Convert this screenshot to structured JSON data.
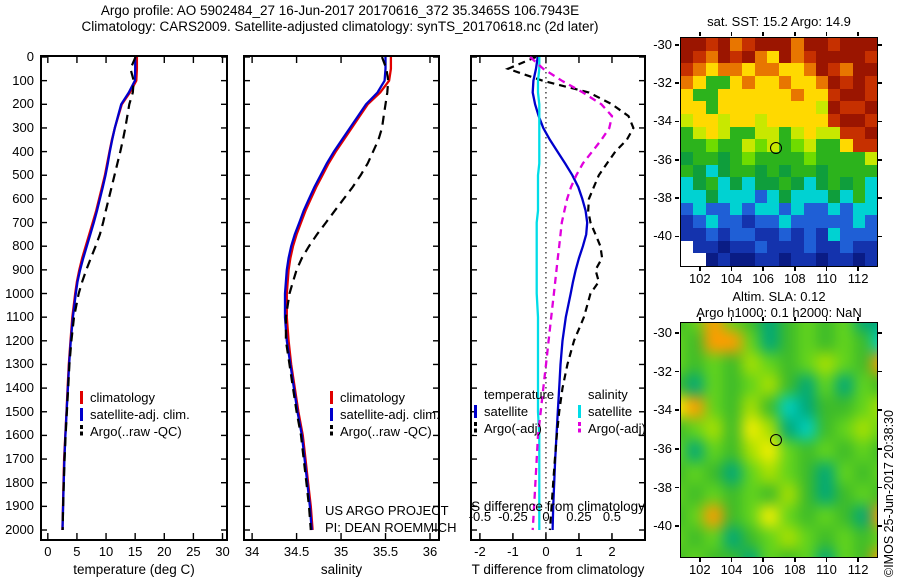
{
  "title": {
    "line1": "Argo profile: AO 5902484_27 16-Jun-2017 20170616_372 35.3465S 106.7943E",
    "line2": "Climatology: CARS2009. Satellite-adjusted climatology: synTS_20170618.nc (2d later)"
  },
  "credit": "©IMOS 25-Jun-2017 20:38:30",
  "notes": {
    "us_argo": [
      "US ARGO PROJECT",
      "PI: DEAN ROEMMICH"
    ]
  },
  "colors": {
    "climatology": "#e00000",
    "satellite_adj": "#0000cc",
    "argo": "#000000",
    "s_satellite": "#00dde8",
    "s_argo": "#e000dd"
  },
  "chart_data": [
    {
      "id": "temp-profile",
      "type": "line",
      "xlabel": "temperature (deg C)",
      "xlim": [
        -1,
        30.6
      ],
      "xticks": [
        0,
        5,
        10,
        15,
        20,
        25,
        30
      ],
      "ylim": [
        0,
        2038
      ],
      "ytick_labels": true,
      "yticks": [
        0,
        100,
        200,
        300,
        400,
        500,
        600,
        700,
        800,
        900,
        1000,
        1100,
        1200,
        1300,
        1400,
        1500,
        1600,
        1700,
        1800,
        1900,
        2000
      ],
      "depths": [
        0,
        50,
        100,
        150,
        200,
        250,
        300,
        350,
        400,
        450,
        500,
        550,
        600,
        650,
        700,
        750,
        800,
        850,
        900,
        950,
        1000,
        1100,
        1200,
        1300,
        1400,
        1500,
        1600,
        1700,
        1800,
        1900,
        2000
      ],
      "legend": [
        "climatology",
        "satellite-adj. clim.",
        "Argo(..raw -QC)"
      ],
      "series": [
        {
          "name": "climatology",
          "color": "#e00000",
          "width": 2.3,
          "values": [
            15.3,
            15.3,
            15.2,
            14.1,
            12.7,
            12.1,
            11.5,
            11.0,
            10.6,
            10.2,
            9.8,
            9.3,
            8.8,
            8.3,
            7.7,
            7.1,
            6.5,
            5.9,
            5.4,
            5.0,
            4.7,
            4.2,
            3.9,
            3.6,
            3.4,
            3.2,
            3.0,
            2.8,
            2.7,
            2.6,
            2.5
          ]
        },
        {
          "name": "satellite-adj-clim",
          "color": "#0000cc",
          "width": 2.3,
          "values": [
            15.0,
            15.0,
            14.95,
            13.9,
            12.6,
            12.05,
            11.5,
            11.05,
            10.65,
            10.3,
            9.9,
            9.45,
            8.95,
            8.45,
            7.9,
            7.3,
            6.7,
            6.1,
            5.55,
            5.1,
            4.8,
            4.3,
            3.95,
            3.65,
            3.45,
            3.22,
            3.02,
            2.85,
            2.72,
            2.62,
            2.52
          ]
        },
        {
          "name": "argo-raw",
          "color": "#000000",
          "width": 2.2,
          "dash": "9 6",
          "values": [
            15.05,
            14.2,
            14.75,
            14.6,
            14.0,
            13.65,
            13.3,
            12.9,
            12.45,
            11.95,
            11.45,
            10.95,
            10.45,
            9.95,
            9.5,
            8.95,
            8.2,
            7.4,
            6.6,
            5.9,
            5.3,
            4.5,
            4.05,
            3.7,
            3.5,
            3.28,
            3.06,
            2.88,
            2.74,
            2.63,
            2.55
          ]
        }
      ]
    },
    {
      "id": "salinity-profile",
      "type": "line",
      "xlabel": "salinity",
      "xlim": [
        33.92,
        36.09
      ],
      "xticks": [
        34,
        34.5,
        35,
        35.5,
        36
      ],
      "ylim": [
        0,
        2038
      ],
      "ytick_labels": false,
      "yticks": [
        0,
        100,
        200,
        300,
        400,
        500,
        600,
        700,
        800,
        900,
        1000,
        1100,
        1200,
        1300,
        1400,
        1500,
        1600,
        1700,
        1800,
        1900,
        2000
      ],
      "depths": [
        0,
        50,
        100,
        150,
        200,
        250,
        300,
        350,
        400,
        450,
        500,
        550,
        600,
        650,
        700,
        750,
        800,
        850,
        900,
        950,
        1000,
        1100,
        1200,
        1300,
        1400,
        1500,
        1600,
        1700,
        1800,
        1900,
        2000
      ],
      "legend": [
        "climatology",
        "satellite-adj. clim.",
        "Argo(..raw -QC)"
      ],
      "series": [
        {
          "name": "climatology",
          "color": "#e00000",
          "width": 2.3,
          "values": [
            35.56,
            35.56,
            35.54,
            35.44,
            35.3,
            35.21,
            35.12,
            35.03,
            34.94,
            34.86,
            34.79,
            34.72,
            34.66,
            34.6,
            34.55,
            34.5,
            34.46,
            34.43,
            34.41,
            34.4,
            34.39,
            34.39,
            34.41,
            34.44,
            34.48,
            34.52,
            34.57,
            34.6,
            34.63,
            34.66,
            34.68
          ]
        },
        {
          "name": "satellite-adj-clim",
          "color": "#0000cc",
          "width": 2.3,
          "values": [
            35.5,
            35.5,
            35.49,
            35.41,
            35.28,
            35.19,
            35.1,
            35.01,
            34.92,
            34.84,
            34.77,
            34.7,
            34.64,
            34.58,
            34.53,
            34.48,
            34.44,
            34.41,
            34.39,
            34.38,
            34.37,
            34.37,
            34.39,
            34.43,
            34.47,
            34.51,
            34.56,
            34.59,
            34.62,
            34.65,
            34.67
          ]
        },
        {
          "name": "argo-raw",
          "color": "#000000",
          "width": 2.2,
          "dash": "9 6",
          "values": [
            35.46,
            35.51,
            35.53,
            35.52,
            35.5,
            35.48,
            35.46,
            35.42,
            35.36,
            35.3,
            35.22,
            35.13,
            35.03,
            34.93,
            34.83,
            34.73,
            34.64,
            34.56,
            34.5,
            34.46,
            34.42,
            34.38,
            34.38,
            34.42,
            34.46,
            34.5,
            34.55,
            34.58,
            34.61,
            34.64,
            34.66
          ]
        }
      ]
    },
    {
      "id": "difference-profile",
      "type": "line",
      "xlabel": "T difference from climatology",
      "xlim": [
        -2.24,
        2.97
      ],
      "xticks": [
        -2,
        -1,
        0,
        1,
        2
      ],
      "ylim": [
        0,
        2038
      ],
      "ytick_labels": false,
      "zero_line": true,
      "yticks": [
        0,
        100,
        200,
        300,
        400,
        500,
        600,
        700,
        800,
        900,
        1000,
        1100,
        1200,
        1300,
        1400,
        1500,
        1600,
        1700,
        1800,
        1900,
        2000
      ],
      "s_axis": {
        "label": "S difference from climatology",
        "ticks": [
          -0.5,
          -0.25,
          0,
          0.25,
          0.5
        ],
        "scale": 4
      },
      "depths": [
        0,
        50,
        100,
        150,
        200,
        250,
        300,
        350,
        400,
        450,
        500,
        550,
        600,
        650,
        700,
        750,
        800,
        850,
        900,
        950,
        1000,
        1100,
        1200,
        1300,
        1400,
        1500,
        1600,
        1700,
        1800,
        1900,
        2000
      ],
      "legend": {
        "t_header": "temperature",
        "s_header": "salinity",
        "t_satellite": "satellite",
        "t_argo": "Argo(-adj)",
        "s_satellite": "satellite",
        "s_argo": "Argo(-adj)"
      },
      "series": [
        {
          "name": "t-satellite",
          "color": "#0000cc",
          "width": 2.3,
          "values": [
            -0.25,
            -0.3,
            -0.38,
            -0.4,
            -0.33,
            -0.22,
            -0.08,
            0.12,
            0.35,
            0.58,
            0.8,
            0.98,
            1.1,
            1.2,
            1.25,
            1.22,
            1.12,
            1.0,
            0.9,
            0.82,
            0.75,
            0.6,
            0.5,
            0.44,
            0.4,
            0.36,
            0.32,
            0.28,
            0.25,
            0.22,
            0.2
          ]
        },
        {
          "name": "t-argo",
          "color": "#000000",
          "width": 2.2,
          "dash": "7 5",
          "values": [
            -0.3,
            -1.15,
            -0.1,
            1.3,
            2.0,
            2.5,
            2.65,
            2.45,
            2.1,
            1.85,
            1.6,
            1.45,
            1.3,
            1.28,
            1.35,
            1.5,
            1.65,
            1.7,
            1.5,
            1.6,
            1.35,
            1.15,
            0.85,
            0.65,
            0.5,
            0.4,
            0.33,
            0.27,
            0.22,
            0.17,
            0.12
          ]
        },
        {
          "name": "s-satellite",
          "color": "#00dde8",
          "width": 2.3,
          "x_scale": 4,
          "values": [
            -0.05,
            -0.05,
            -0.06,
            -0.06,
            -0.05,
            -0.05,
            -0.05,
            -0.05,
            -0.05,
            -0.05,
            -0.06,
            -0.06,
            -0.06,
            -0.06,
            -0.07,
            -0.07,
            -0.07,
            -0.07,
            -0.07,
            -0.07,
            -0.07,
            -0.06,
            -0.06,
            -0.06,
            -0.06,
            -0.06,
            -0.05,
            -0.05,
            -0.05,
            -0.05,
            -0.05
          ]
        },
        {
          "name": "s-argo",
          "color": "#e000dd",
          "width": 2.3,
          "dash": "7 5",
          "x_scale": 4,
          "values": [
            -0.12,
            -0.02,
            0.12,
            0.28,
            0.42,
            0.5,
            0.48,
            0.42,
            0.35,
            0.28,
            0.23,
            0.19,
            0.16,
            0.14,
            0.12,
            0.11,
            0.1,
            0.09,
            0.08,
            0.07,
            0.06,
            0.04,
            0.02,
            0.0,
            -0.02,
            -0.04,
            -0.06,
            -0.07,
            -0.08,
            -0.09,
            -0.1
          ]
        }
      ]
    },
    {
      "id": "sst-map",
      "type": "heatmap",
      "smooth": false,
      "title": "sat. SST: 15.2 Argo: 14.9",
      "lon_range": [
        100.75,
        113.125
      ],
      "lat_range": [
        -29.59,
        -41.49
      ],
      "lon_ticks": [
        102,
        104,
        106,
        108,
        110,
        112
      ],
      "lat_ticks": [
        -30,
        -32,
        -34,
        -36,
        -38,
        -40
      ],
      "marker": {
        "lon": 106.8,
        "lat": -35.38
      },
      "marker_el": "argo-position-marker-sst",
      "palette": {
        "K": "#9b1500",
        "R": "#c63000",
        "O": "#e87600",
        "o": "#f9a800",
        "Y": "#ffd900",
        "L": "#c8e800",
        "g": "#6fdc00",
        "G": "#2cb31c",
        "D": "#0f9e3c",
        "c": "#00d2d2",
        "b": "#1f5fd6",
        "B": "#1433ad",
        "N": "#0a1c85",
        "w": "#ffffff"
      },
      "grid": [
        "KKRKORKKKOKKRKKK",
        "KROKRKOYKORKKKKR",
        "ROYOOYOOYYOKROKK",
        "OYGGYOYYOYYOKRKR",
        "YGGYYYYYYOYYRKKR",
        "YYGYYYYYYYYLKRRK",
        "LYYLYYLYYYYYRKKR",
        "GLYLGGLLGLYLLRRK",
        "GGgGGLgLGgLGGYRR",
        "DGGDGgGGGGgGGGGL",
        "GDcDGGDGDGGDGGGG",
        "cDGcDcDDGDcDGDGc",
        "ccDcccbcDcccDcGc",
        "bcbbcbccbcbbcbcc",
        "BbcbbBbbcbbbbbcb",
        "BBbBbbBBbBbBcbbb",
        "wBBNBBbBBBbBBbBB",
        "wwNBNNBBNBBNBBNB"
      ]
    },
    {
      "id": "sla-map",
      "type": "heatmap",
      "smooth": true,
      "title_line1": "Altim. SLA: 0.12",
      "title_line2": "Argo h1000: 0.1 h2000: NaN",
      "lon_range": [
        100.75,
        113.125
      ],
      "lat_range": [
        -29.44,
        -41.54
      ],
      "lon_ticks": [
        102,
        104,
        106,
        108,
        110,
        112
      ],
      "lat_ticks": [
        -30,
        -32,
        -34,
        -36,
        -38,
        -40
      ],
      "marker": {
        "lon": 106.8,
        "lat": -35.55
      },
      "marker_el": "argo-position-marker-sla",
      "palette": {
        "G": "#3dbb2a",
        "g": "#63d41c",
        "L": "#a8e000",
        "Y": "#f2ee00",
        "O": "#ff9c00",
        "E": "#00a878",
        "c": "#00cfc0",
        "D": "#179e46"
      },
      "grid": [
        "GgOgGEGgGgEE",
        "gGOOgEGgGgGc",
        "gGgGLgGgLgGO",
        "GEgGgLGEgEgG",
        "YOgGLGcEGGgL",
        "GgLGYLEcGgLg",
        "gEgGLYgGgGgG",
        "GgGEgLgGEgGg",
        "gGgGgGLGEGgG",
        "GgOGgYgGgGEO",
        "gGgEGgLgGgGg",
        "GgGGEgGgEgGO"
      ]
    }
  ]
}
